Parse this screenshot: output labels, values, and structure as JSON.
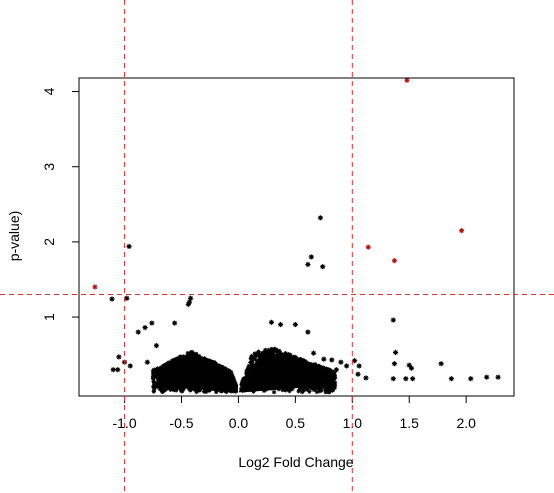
{
  "chart_data": {
    "type": "scatter",
    "title": "",
    "xlabel": "Log2 Fold Change",
    "ylabel": "p-value)",
    "xlim": [
      -1.4,
      2.42
    ],
    "ylim": [
      -0.05,
      4.18
    ],
    "xticks": [
      -1.0,
      -0.5,
      0.0,
      0.5,
      1.0,
      1.5,
      2.0
    ],
    "xtick_labels": [
      "-1.0",
      "-0.5",
      "0.0",
      "0.5",
      "1.0",
      "1.5",
      "2.0"
    ],
    "yticks": [
      1,
      2,
      3,
      4
    ],
    "ytick_labels": [
      "1",
      "2",
      "3",
      "4"
    ],
    "marker": "*",
    "thresholds": {
      "x": [
        -1.0,
        1.0
      ],
      "y": 1.3,
      "color": "#e03131",
      "style": "dashed"
    },
    "series": [
      {
        "color": "#000000",
        "points": [
          [
            0.72,
            2.32
          ],
          [
            0.64,
            1.8
          ],
          [
            0.61,
            1.7
          ],
          [
            0.74,
            1.67
          ],
          [
            -0.96,
            1.94
          ],
          [
            -1.11,
            1.24
          ],
          [
            -0.98,
            1.25
          ],
          [
            -0.42,
            1.25
          ],
          [
            -0.43,
            1.2
          ],
          [
            -0.44,
            1.17
          ],
          [
            1.36,
            0.96
          ],
          [
            1.38,
            0.53
          ],
          [
            1.37,
            0.38
          ],
          [
            1.5,
            0.36
          ],
          [
            1.52,
            0.32
          ],
          [
            1.47,
            0.18
          ],
          [
            1.53,
            0.18
          ],
          [
            1.36,
            0.18
          ],
          [
            1.78,
            0.38
          ],
          [
            1.87,
            0.18
          ],
          [
            2.04,
            0.18
          ],
          [
            2.18,
            0.2
          ],
          [
            2.28,
            0.2
          ],
          [
            1.02,
            0.42
          ],
          [
            1.06,
            0.35
          ],
          [
            1.05,
            0.24
          ],
          [
            1.12,
            0.19
          ],
          [
            -1.05,
            0.47
          ],
          [
            -1.0,
            0.4
          ],
          [
            -1.06,
            0.3
          ],
          [
            -1.1,
            0.3
          ],
          [
            -0.95,
            0.35
          ],
          [
            -0.88,
            0.8
          ],
          [
            -0.82,
            0.86
          ],
          [
            -0.76,
            0.92
          ],
          [
            -0.56,
            0.92
          ],
          [
            -0.72,
            0.62
          ],
          [
            -0.8,
            0.4
          ],
          [
            -0.6,
            0.24
          ],
          [
            0.29,
            0.93
          ],
          [
            0.37,
            0.9
          ],
          [
            0.5,
            0.9
          ],
          [
            0.61,
            0.8
          ],
          [
            0.66,
            0.52
          ],
          [
            0.75,
            0.44
          ],
          [
            0.82,
            0.43
          ],
          [
            0.9,
            0.4
          ],
          [
            0.95,
            0.35
          ],
          [
            0.7,
            0.22
          ],
          [
            0.86,
            0.3
          ]
        ]
      },
      {
        "color": "#b01818",
        "points": [
          [
            1.48,
            4.15
          ],
          [
            1.96,
            2.15
          ],
          [
            1.14,
            1.93
          ],
          [
            1.37,
            1.75
          ],
          [
            -1.26,
            1.4
          ]
        ]
      }
    ],
    "cloud": {
      "note": "dense cluster of insignificant points around x=0 forming a V shape",
      "left": {
        "x_range": [
          -0.75,
          -0.02
        ],
        "y_peak": 0.55,
        "peak_x": -0.42
      },
      "right": {
        "x_range": [
          0.02,
          0.85
        ],
        "y_peak": 0.6,
        "peak_x": 0.28
      },
      "color": "#000000"
    }
  }
}
